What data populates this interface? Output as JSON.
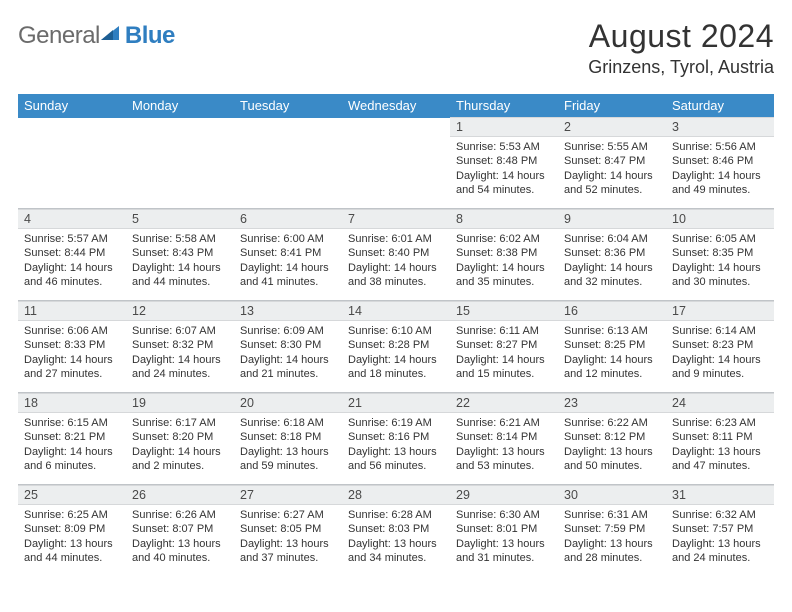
{
  "brand": {
    "word1": "General",
    "word2": "Blue"
  },
  "title": "August 2024",
  "location": "Grinzens, Tyrol, Austria",
  "colors": {
    "header_bg": "#3a8ac7",
    "header_text": "#ffffff",
    "daynum_bg": "#eceeef",
    "daynum_text": "#4a4a4a",
    "body_text": "#333333",
    "rule": "#c0c4c8",
    "logo_grey": "#6b6b6b",
    "logo_blue": "#2f7ec0"
  },
  "weekdays": [
    "Sunday",
    "Monday",
    "Tuesday",
    "Wednesday",
    "Thursday",
    "Friday",
    "Saturday"
  ],
  "weeks": [
    {
      "nums": [
        "",
        "",
        "",
        "",
        "1",
        "2",
        "3"
      ],
      "cells": [
        null,
        null,
        null,
        null,
        {
          "sunrise": "5:53 AM",
          "sunset": "8:48 PM",
          "daylight": "14 hours and 54 minutes."
        },
        {
          "sunrise": "5:55 AM",
          "sunset": "8:47 PM",
          "daylight": "14 hours and 52 minutes."
        },
        {
          "sunrise": "5:56 AM",
          "sunset": "8:46 PM",
          "daylight": "14 hours and 49 minutes."
        }
      ]
    },
    {
      "nums": [
        "4",
        "5",
        "6",
        "7",
        "8",
        "9",
        "10"
      ],
      "cells": [
        {
          "sunrise": "5:57 AM",
          "sunset": "8:44 PM",
          "daylight": "14 hours and 46 minutes."
        },
        {
          "sunrise": "5:58 AM",
          "sunset": "8:43 PM",
          "daylight": "14 hours and 44 minutes."
        },
        {
          "sunrise": "6:00 AM",
          "sunset": "8:41 PM",
          "daylight": "14 hours and 41 minutes."
        },
        {
          "sunrise": "6:01 AM",
          "sunset": "8:40 PM",
          "daylight": "14 hours and 38 minutes."
        },
        {
          "sunrise": "6:02 AM",
          "sunset": "8:38 PM",
          "daylight": "14 hours and 35 minutes."
        },
        {
          "sunrise": "6:04 AM",
          "sunset": "8:36 PM",
          "daylight": "14 hours and 32 minutes."
        },
        {
          "sunrise": "6:05 AM",
          "sunset": "8:35 PM",
          "daylight": "14 hours and 30 minutes."
        }
      ]
    },
    {
      "nums": [
        "11",
        "12",
        "13",
        "14",
        "15",
        "16",
        "17"
      ],
      "cells": [
        {
          "sunrise": "6:06 AM",
          "sunset": "8:33 PM",
          "daylight": "14 hours and 27 minutes."
        },
        {
          "sunrise": "6:07 AM",
          "sunset": "8:32 PM",
          "daylight": "14 hours and 24 minutes."
        },
        {
          "sunrise": "6:09 AM",
          "sunset": "8:30 PM",
          "daylight": "14 hours and 21 minutes."
        },
        {
          "sunrise": "6:10 AM",
          "sunset": "8:28 PM",
          "daylight": "14 hours and 18 minutes."
        },
        {
          "sunrise": "6:11 AM",
          "sunset": "8:27 PM",
          "daylight": "14 hours and 15 minutes."
        },
        {
          "sunrise": "6:13 AM",
          "sunset": "8:25 PM",
          "daylight": "14 hours and 12 minutes."
        },
        {
          "sunrise": "6:14 AM",
          "sunset": "8:23 PM",
          "daylight": "14 hours and 9 minutes."
        }
      ]
    },
    {
      "nums": [
        "18",
        "19",
        "20",
        "21",
        "22",
        "23",
        "24"
      ],
      "cells": [
        {
          "sunrise": "6:15 AM",
          "sunset": "8:21 PM",
          "daylight": "14 hours and 6 minutes."
        },
        {
          "sunrise": "6:17 AM",
          "sunset": "8:20 PM",
          "daylight": "14 hours and 2 minutes."
        },
        {
          "sunrise": "6:18 AM",
          "sunset": "8:18 PM",
          "daylight": "13 hours and 59 minutes."
        },
        {
          "sunrise": "6:19 AM",
          "sunset": "8:16 PM",
          "daylight": "13 hours and 56 minutes."
        },
        {
          "sunrise": "6:21 AM",
          "sunset": "8:14 PM",
          "daylight": "13 hours and 53 minutes."
        },
        {
          "sunrise": "6:22 AM",
          "sunset": "8:12 PM",
          "daylight": "13 hours and 50 minutes."
        },
        {
          "sunrise": "6:23 AM",
          "sunset": "8:11 PM",
          "daylight": "13 hours and 47 minutes."
        }
      ]
    },
    {
      "nums": [
        "25",
        "26",
        "27",
        "28",
        "29",
        "30",
        "31"
      ],
      "cells": [
        {
          "sunrise": "6:25 AM",
          "sunset": "8:09 PM",
          "daylight": "13 hours and 44 minutes."
        },
        {
          "sunrise": "6:26 AM",
          "sunset": "8:07 PM",
          "daylight": "13 hours and 40 minutes."
        },
        {
          "sunrise": "6:27 AM",
          "sunset": "8:05 PM",
          "daylight": "13 hours and 37 minutes."
        },
        {
          "sunrise": "6:28 AM",
          "sunset": "8:03 PM",
          "daylight": "13 hours and 34 minutes."
        },
        {
          "sunrise": "6:30 AM",
          "sunset": "8:01 PM",
          "daylight": "13 hours and 31 minutes."
        },
        {
          "sunrise": "6:31 AM",
          "sunset": "7:59 PM",
          "daylight": "13 hours and 28 minutes."
        },
        {
          "sunrise": "6:32 AM",
          "sunset": "7:57 PM",
          "daylight": "13 hours and 24 minutes."
        }
      ]
    }
  ],
  "labels": {
    "sunrise": "Sunrise:",
    "sunset": "Sunset:",
    "daylight": "Daylight:"
  }
}
